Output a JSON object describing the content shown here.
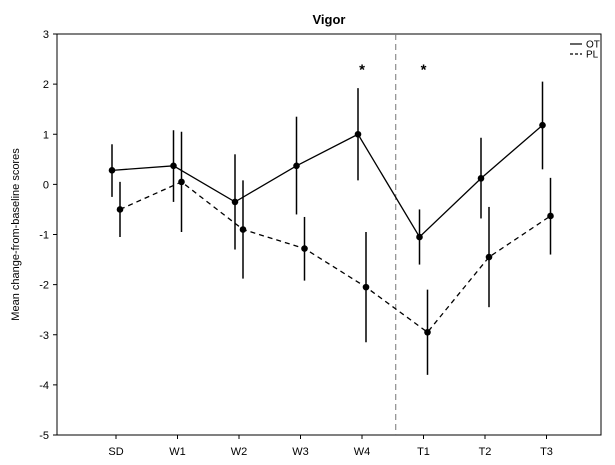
{
  "chart_data": {
    "type": "line",
    "title": "Vigor",
    "xlabel": "",
    "ylabel": "Mean change-from-baseline scores",
    "categories": [
      "SD",
      "W1",
      "W2",
      "W3",
      "W4",
      "T1",
      "T2",
      "T3"
    ],
    "yticks": [
      -5,
      -4,
      -3,
      -2,
      -1,
      0,
      1,
      2,
      3
    ],
    "ylim": [
      -5,
      3
    ],
    "grid": false,
    "legend_position": "top-right",
    "series": [
      {
        "name": "OT",
        "line_style": "solid",
        "values": [
          0.28,
          0.37,
          -0.35,
          0.37,
          1.0,
          -1.05,
          0.12,
          1.18
        ],
        "error_low": [
          -0.25,
          -0.35,
          -1.3,
          -0.6,
          0.08,
          -1.6,
          -0.68,
          0.3
        ],
        "error_high": [
          0.8,
          1.08,
          0.6,
          1.35,
          1.92,
          -0.5,
          0.93,
          2.05
        ]
      },
      {
        "name": "PL",
        "line_style": "dashed",
        "values": [
          -0.5,
          0.05,
          -0.9,
          -1.28,
          -2.05,
          -2.95,
          -1.45,
          -0.63
        ],
        "error_low": [
          -1.05,
          -0.95,
          -1.88,
          -1.92,
          -3.15,
          -3.8,
          -2.45,
          -1.4
        ],
        "error_high": [
          0.05,
          1.05,
          0.08,
          -0.65,
          -0.95,
          -2.1,
          -0.45,
          0.13
        ]
      }
    ],
    "annotations": [
      {
        "text": "*",
        "x": "W4",
        "y": 2.35
      },
      {
        "text": "*",
        "x": "T1",
        "y": 2.35
      }
    ],
    "vertical_reference_line_between": [
      "W4",
      "T1"
    ]
  }
}
